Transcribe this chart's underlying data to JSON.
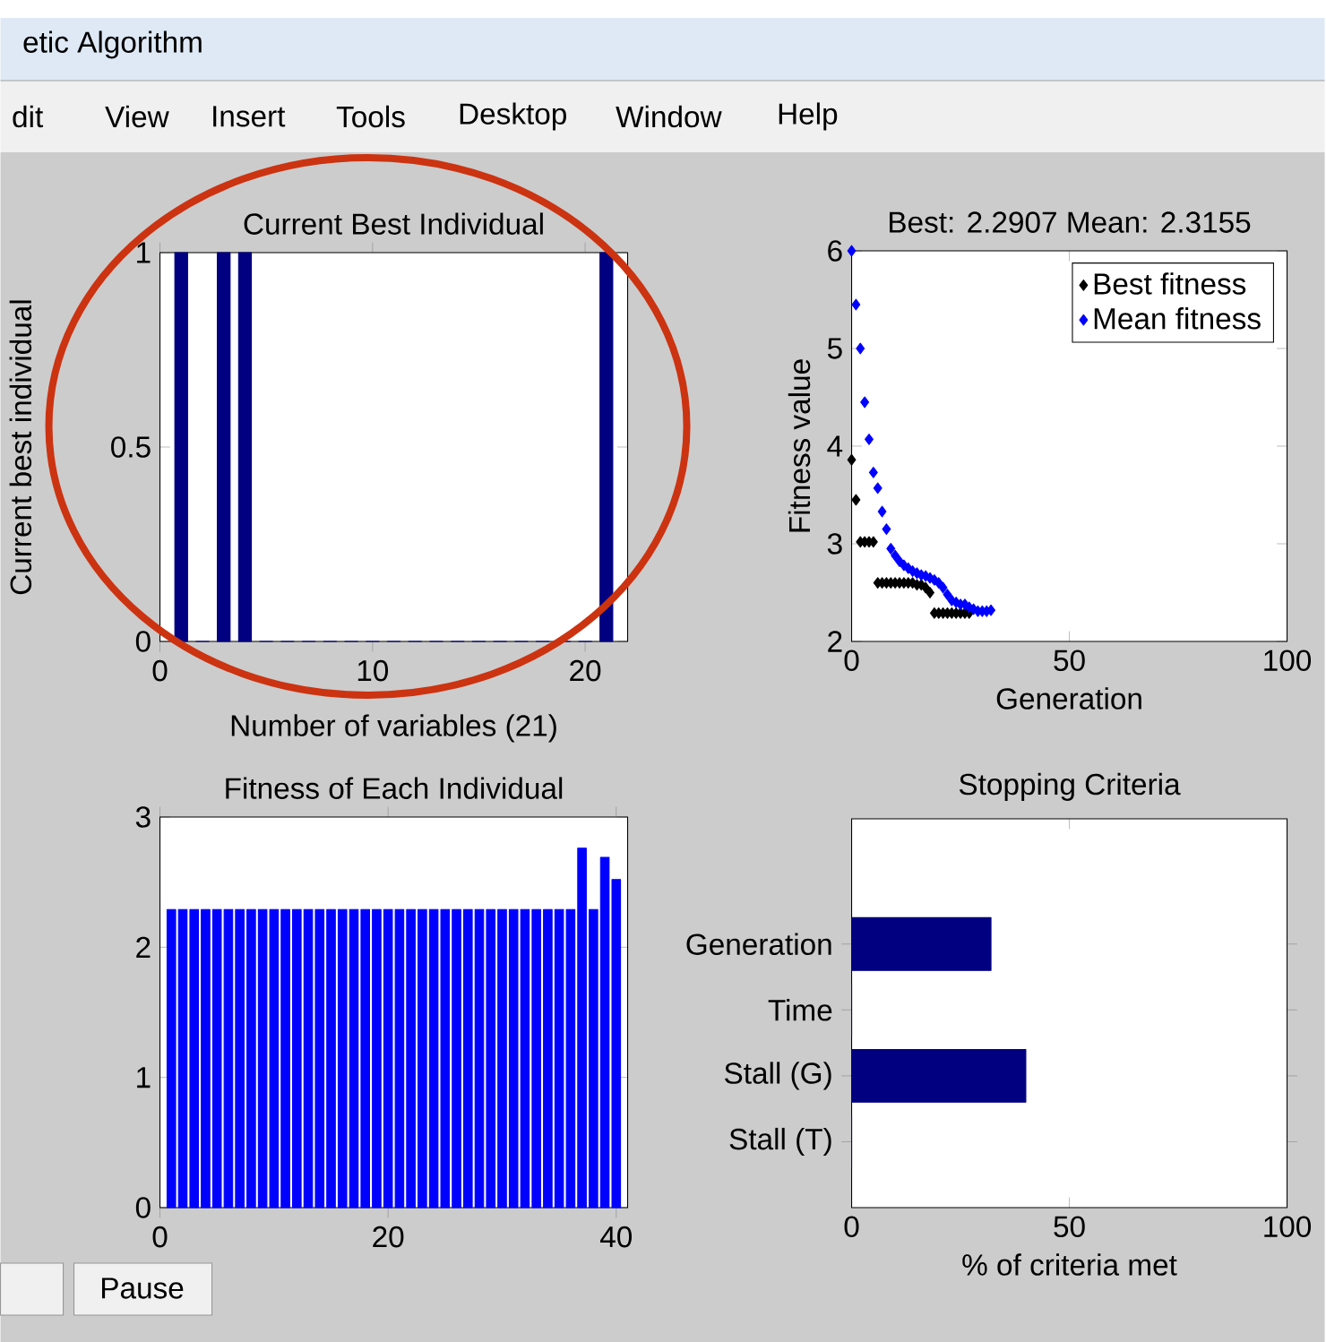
{
  "chart_data": [
    {
      "type": "bar",
      "title": "Current Best Individual",
      "xlabel": "Number of variables (21)",
      "ylabel": "Current best individual",
      "x": [
        1,
        2,
        3,
        4,
        5,
        6,
        7,
        8,
        9,
        10,
        11,
        12,
        13,
        14,
        15,
        16,
        17,
        18,
        19,
        20,
        21
      ],
      "values": [
        1,
        0,
        1,
        1,
        0,
        0,
        0,
        0,
        0,
        0,
        0,
        0,
        0,
        0,
        0,
        0,
        0,
        0,
        0,
        0,
        1
      ],
      "color": "#000080",
      "xlim": [
        0,
        22
      ],
      "xticks": [
        0,
        10,
        20
      ],
      "ylim": [
        0,
        1
      ],
      "yticks": [
        0,
        0.5,
        1
      ]
    },
    {
      "type": "scatter",
      "title": "Best: 2.2907 Mean: 2.3155",
      "xlabel": "Generation",
      "ylabel": "Fitness value",
      "x": [
        0,
        1,
        2,
        3,
        4,
        5,
        6,
        7,
        8,
        9,
        10,
        11,
        12,
        13,
        14,
        15,
        16,
        17,
        18,
        19,
        20,
        21,
        22,
        23,
        24,
        25,
        26,
        27,
        28,
        29,
        30,
        31,
        32
      ],
      "series": [
        {
          "name": "Best fitness",
          "color": "#000000",
          "values": [
            3.86,
            3.45,
            3.02,
            3.02,
            3.02,
            3.02,
            2.6,
            2.6,
            2.6,
            2.6,
            2.6,
            2.6,
            2.6,
            2.6,
            2.6,
            2.58,
            2.58,
            2.55,
            2.5,
            2.29,
            2.29,
            2.29,
            2.29,
            2.29,
            2.29,
            2.29,
            2.29,
            2.29,
            null,
            null,
            null,
            null,
            null
          ]
        },
        {
          "name": "Mean fitness",
          "color": "#0000ff",
          "values": [
            6.0,
            5.45,
            5.0,
            4.45,
            4.07,
            3.73,
            3.57,
            3.33,
            3.15,
            2.95,
            2.88,
            2.82,
            2.78,
            2.75,
            2.72,
            2.7,
            2.68,
            2.67,
            2.65,
            2.63,
            2.6,
            2.55,
            2.48,
            2.42,
            2.4,
            2.38,
            2.38,
            2.35,
            2.33,
            2.31,
            2.31,
            2.31,
            2.32
          ]
        }
      ],
      "marker": "diamond",
      "legend": "top right",
      "xlim": [
        0,
        100
      ],
      "xticks": [
        0,
        50,
        100
      ],
      "ylim": [
        2,
        6
      ],
      "yticks": [
        2,
        3,
        4,
        5,
        6
      ]
    },
    {
      "type": "bar",
      "title": "Fitness of Each Individual",
      "x": [
        1,
        2,
        3,
        4,
        5,
        6,
        7,
        8,
        9,
        10,
        11,
        12,
        13,
        14,
        15,
        16,
        17,
        18,
        19,
        20,
        21,
        22,
        23,
        24,
        25,
        26,
        27,
        28,
        29,
        30,
        31,
        32,
        33,
        34,
        35,
        36,
        37,
        38,
        39,
        40
      ],
      "values": [
        2.29,
        2.29,
        2.29,
        2.29,
        2.29,
        2.29,
        2.29,
        2.29,
        2.29,
        2.29,
        2.29,
        2.29,
        2.29,
        2.29,
        2.29,
        2.29,
        2.29,
        2.29,
        2.29,
        2.29,
        2.29,
        2.29,
        2.29,
        2.29,
        2.29,
        2.29,
        2.29,
        2.29,
        2.29,
        2.29,
        2.29,
        2.29,
        2.29,
        2.29,
        2.29,
        2.29,
        2.76,
        2.29,
        2.69,
        2.52
      ],
      "color": "#0000ff",
      "xlim": [
        0,
        41
      ],
      "xticks": [
        0,
        20,
        40
      ],
      "ylim": [
        0,
        3
      ],
      "yticks": [
        0,
        1,
        2,
        3
      ]
    },
    {
      "type": "bar",
      "orientation": "horizontal",
      "title": "Stopping Criteria",
      "xlabel": "% of criteria met",
      "categories": [
        "Generation",
        "Time",
        "Stall (G)",
        "Stall (T)"
      ],
      "values": [
        32,
        0,
        40,
        0
      ],
      "color": "#000080",
      "xlim": [
        0,
        100
      ],
      "xticks": [
        0,
        50,
        100
      ]
    },
    {
      "type": "other",
      "annotations": [
        "etic Algorithm",
        "dit",
        "View",
        "Insert",
        "Tools",
        "Desktop",
        "Window",
        "Help",
        "Pause"
      ]
    }
  ]
}
